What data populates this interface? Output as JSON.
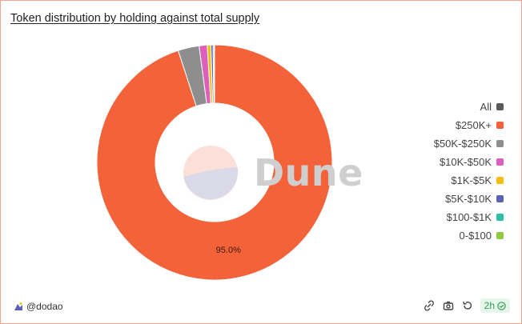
{
  "title": "Token distribution by holding against total supply",
  "watermark": "Dune",
  "author": "@dodao",
  "footer": {
    "badge": "2h",
    "icons": [
      "refresh-link-icon",
      "camera-icon",
      "reload-icon",
      "check-circle-icon"
    ]
  },
  "chart_data": {
    "type": "pie",
    "donut": true,
    "start_angle_deg": 90,
    "legend_placement": "right",
    "slices": [
      {
        "label": "$250K+",
        "value": 95.0,
        "color": "#f4623a"
      },
      {
        "label": "$50K-$250K",
        "value": 2.9,
        "color": "#8e8e8e"
      },
      {
        "label": "$10K-$50K",
        "value": 1.1,
        "color": "#de5fbb"
      },
      {
        "label": "$1K-$5K",
        "value": 0.5,
        "color": "#f6be12"
      },
      {
        "label": "$5K-$10K",
        "value": 0.3,
        "color": "#5a62b8"
      },
      {
        "label": "$100-$1K",
        "value": 0.15,
        "color": "#2ebfa4"
      },
      {
        "label": "0-$100",
        "value": 0.05,
        "color": "#8fca41"
      }
    ],
    "data_labels": [
      "95.0%"
    ],
    "legend": [
      {
        "label": "All",
        "color": "#5a5a5a"
      },
      {
        "label": "$250K+",
        "color": "#f4623a"
      },
      {
        "label": "$50K-$250K",
        "color": "#8e8e8e"
      },
      {
        "label": "$10K-$50K",
        "color": "#de5fbb"
      },
      {
        "label": "$1K-$5K",
        "color": "#f6be12"
      },
      {
        "label": "$5K-$10K",
        "color": "#5a62b8"
      },
      {
        "label": "$100-$1K",
        "color": "#2ebfa4"
      },
      {
        "label": "0-$100",
        "color": "#8fca41"
      }
    ]
  }
}
